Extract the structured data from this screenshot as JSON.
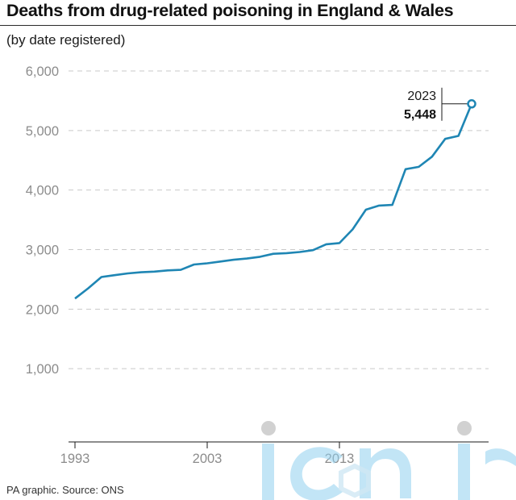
{
  "header": {
    "title": "Deaths from drug-related poisoning in England & Wales",
    "subtitle": "(by date registered)"
  },
  "footer": {
    "source": "PA graphic. Source: ONS"
  },
  "colors": {
    "line": "#1f86b4",
    "grid": "#c9c9c9",
    "tick_text": "#8c8c8c",
    "axis": "#1a1a1a"
  },
  "chart_data": {
    "type": "line",
    "title": "Deaths from drug-related poisoning in England & Wales",
    "subtitle": "(by date registered)",
    "xlabel": "",
    "ylabel": "",
    "xlim": [
      1993,
      2023
    ],
    "ylim": [
      0,
      6000
    ],
    "x_ticks": [
      1993,
      2003,
      2013
    ],
    "x_tick_labels": [
      "1993",
      "2003",
      "2013"
    ],
    "y_ticks": [
      1000,
      2000,
      3000,
      4000,
      5000,
      6000
    ],
    "y_tick_labels": [
      "1,000",
      "2,000",
      "3,000",
      "4,000",
      "5,000",
      "6,000"
    ],
    "grid": "horizontal dashed",
    "legend": "none",
    "series": [
      {
        "x": [
          1993,
          1994,
          1995,
          1996,
          1997,
          1998,
          1999,
          2000,
          2001,
          2002,
          2003,
          2004,
          2005,
          2006,
          2007,
          2008,
          2009,
          2010,
          2011,
          2012,
          2013,
          2014,
          2015,
          2016,
          2017,
          2018,
          2019,
          2020,
          2021,
          2022,
          2023
        ],
        "values": [
          2178,
          2350,
          2540,
          2570,
          2600,
          2620,
          2630,
          2650,
          2660,
          2750,
          2770,
          2800,
          2830,
          2850,
          2880,
          2930,
          2940,
          2960,
          2990,
          3090,
          3110,
          3340,
          3670,
          3740,
          3750,
          4350,
          4390,
          4560,
          4860,
          4910,
          5448
        ]
      }
    ],
    "annotations": [
      {
        "x": 2023,
        "label_year": "2023",
        "label_value": "5,448"
      }
    ]
  }
}
